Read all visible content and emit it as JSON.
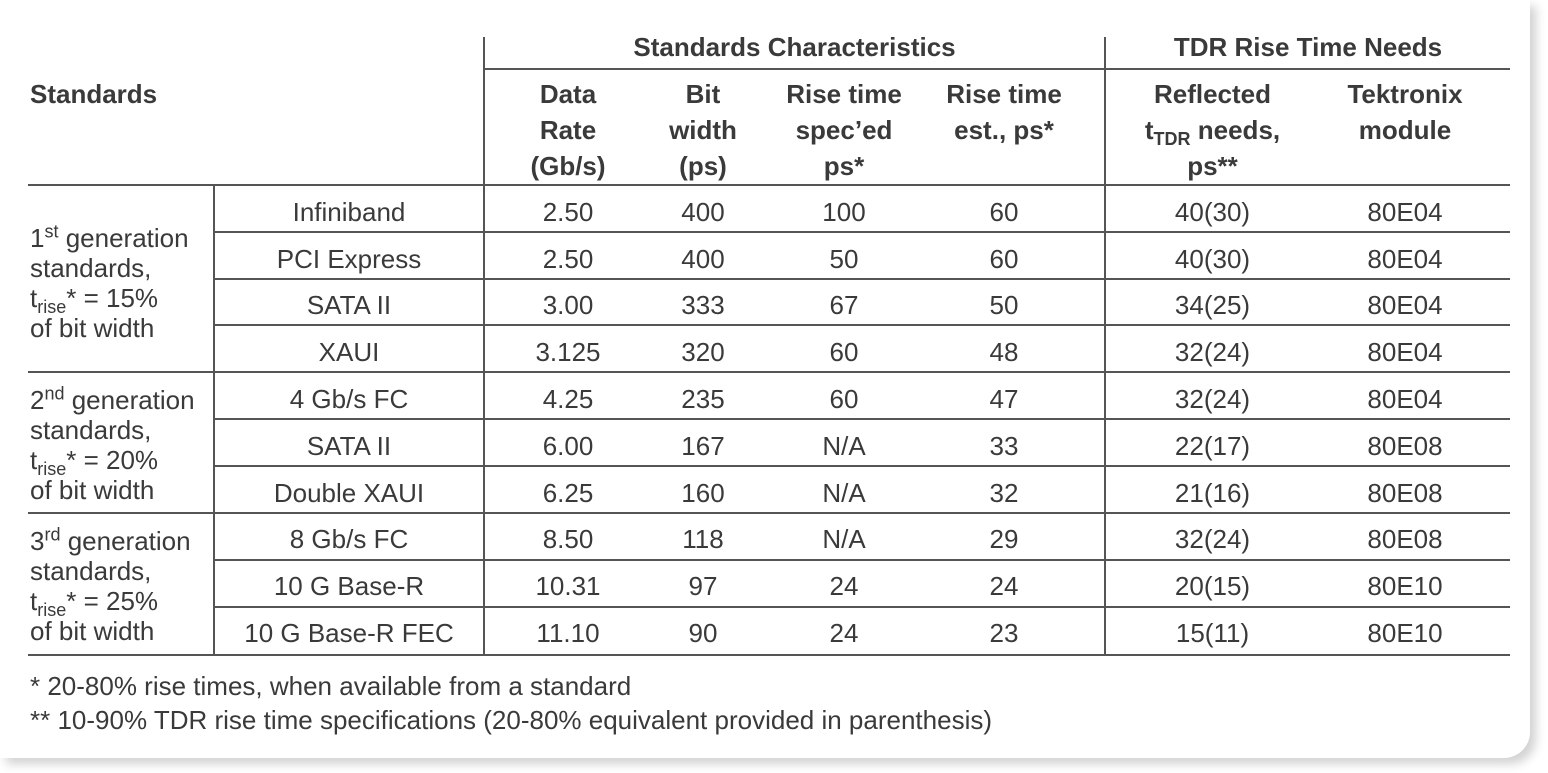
{
  "header": {
    "group1": "Standards Characteristics",
    "group2": "TDR Rise Time Needs",
    "standards": "Standards",
    "col_data_rate": [
      "Data",
      "Rate",
      "(Gb/s)"
    ],
    "col_bit_width": [
      "Bit",
      "width",
      "(ps)"
    ],
    "col_rise_spec": [
      "Rise time",
      "spec’ed",
      "ps*"
    ],
    "col_rise_est": [
      "Rise time",
      "est., ps*"
    ],
    "col_reflected": {
      "line1": "Reflected",
      "t": "t",
      "sub": "TDR",
      "rest": " needs,",
      "line3": "ps**"
    },
    "col_module": [
      "Tektronix",
      "module"
    ]
  },
  "groups": [
    {
      "sup_num": "1",
      "sup": "st",
      "line1": " generation",
      "line2": "standards,",
      "t": "t",
      "sub": "rise",
      "rest": "* = 15%",
      "line4": "of bit width"
    },
    {
      "sup_num": "2",
      "sup": "nd",
      "line1": " generation",
      "line2": "standards,",
      "t": "t",
      "sub": "rise",
      "rest": "* = 20%",
      "line4": "of bit width"
    },
    {
      "sup_num": "3",
      "sup": "rd",
      "line1": " generation",
      "line2": "standards,",
      "t": "t",
      "sub": "rise",
      "rest": "* = 25%",
      "line4": "of bit width"
    }
  ],
  "rows": [
    {
      "standard": "Infiniband",
      "data_rate": "2.50",
      "bit_width": "400",
      "rise_spec": "100",
      "rise_est": "60",
      "reflected": "40(30)",
      "module": "80E04"
    },
    {
      "standard": "PCI Express",
      "data_rate": "2.50",
      "bit_width": "400",
      "rise_spec": "50",
      "rise_est": "60",
      "reflected": "40(30)",
      "module": "80E04"
    },
    {
      "standard": "SATA II",
      "data_rate": "3.00",
      "bit_width": "333",
      "rise_spec": "67",
      "rise_est": "50",
      "reflected": "34(25)",
      "module": "80E04"
    },
    {
      "standard": "XAUI",
      "data_rate": "3.125",
      "bit_width": "320",
      "rise_spec": "60",
      "rise_est": "48",
      "reflected": "32(24)",
      "module": "80E04"
    },
    {
      "standard": "4 Gb/s FC",
      "data_rate": "4.25",
      "bit_width": "235",
      "rise_spec": "60",
      "rise_est": "47",
      "reflected": "32(24)",
      "module": "80E04"
    },
    {
      "standard": "SATA II",
      "data_rate": "6.00",
      "bit_width": "167",
      "rise_spec": "N/A",
      "rise_est": "33",
      "reflected": "22(17)",
      "module": "80E08"
    },
    {
      "standard": "Double XAUI",
      "data_rate": "6.25",
      "bit_width": "160",
      "rise_spec": "N/A",
      "rise_est": "32",
      "reflected": "21(16)",
      "module": "80E08"
    },
    {
      "standard": "8 Gb/s FC",
      "data_rate": "8.50",
      "bit_width": "118",
      "rise_spec": "N/A",
      "rise_est": "29",
      "reflected": "32(24)",
      "module": "80E08"
    },
    {
      "standard": "10 G Base-R",
      "data_rate": "10.31",
      "bit_width": "97",
      "rise_spec": "24",
      "rise_est": "24",
      "reflected": "20(15)",
      "module": "80E10"
    },
    {
      "standard": "10 G Base-R FEC",
      "data_rate": "11.10",
      "bit_width": "90",
      "rise_spec": "24",
      "rise_est": "23",
      "reflected": "15(11)",
      "module": "80E10"
    }
  ],
  "notes": [
    "* 20-80% rise times, when available from a standard",
    "** 10-90% TDR rise time specifications (20-80% equivalent provided in parenthesis)"
  ]
}
